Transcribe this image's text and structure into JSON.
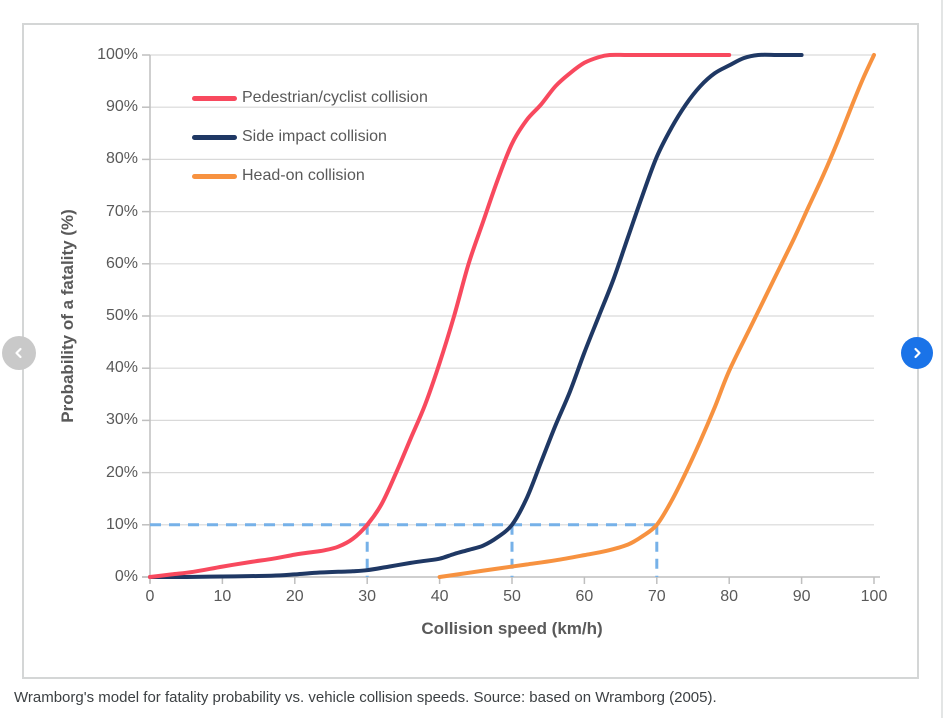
{
  "caption": "Wramborg's model for fatality probability vs. vehicle collision speeds. Source: based on Wramborg (2005).",
  "carousel": {
    "prev_icon": "chevron-left",
    "next_icon": "chevron-right",
    "prev_color": "#c9c9c9",
    "next_color": "#1a73e8"
  },
  "colors": {
    "grid": "#d9d9d9",
    "axis": "#bfbfbf",
    "tick_text": "#595959",
    "guide_blue": "#76b1e8",
    "card_border": "#d4d6d6"
  },
  "chart_data": {
    "type": "line",
    "title": "",
    "xlabel": "Collision speed (km/h)",
    "ylabel": "Probability of a fatality (%)",
    "xlim": [
      0,
      100
    ],
    "ylim": [
      0,
      100
    ],
    "x_ticks": [
      0,
      10,
      20,
      30,
      40,
      50,
      60,
      70,
      80,
      90,
      100
    ],
    "y_ticks": [
      0,
      10,
      20,
      30,
      40,
      50,
      60,
      70,
      80,
      90,
      100
    ],
    "y_tick_suffix": "%",
    "grid": true,
    "legend_position": "top-left",
    "series": [
      {
        "name": "Pedestrian/cyclist collision",
        "color": "#f8495e",
        "points": [
          [
            0,
            0
          ],
          [
            3,
            0.5
          ],
          [
            6,
            1
          ],
          [
            10,
            2
          ],
          [
            14,
            2.9
          ],
          [
            17,
            3.5
          ],
          [
            20,
            4.3
          ],
          [
            22,
            4.7
          ],
          [
            24,
            5.1
          ],
          [
            26,
            5.8
          ],
          [
            28,
            7.3
          ],
          [
            30,
            10
          ],
          [
            32,
            14
          ],
          [
            34,
            20
          ],
          [
            36,
            26.5
          ],
          [
            38,
            33
          ],
          [
            40,
            41
          ],
          [
            42,
            50
          ],
          [
            44,
            60
          ],
          [
            46,
            68
          ],
          [
            48,
            76
          ],
          [
            50,
            83
          ],
          [
            52,
            87.5
          ],
          [
            54,
            90.5
          ],
          [
            56,
            94
          ],
          [
            58,
            96.5
          ],
          [
            60,
            98.5
          ],
          [
            62,
            99.6
          ],
          [
            63.5,
            100
          ],
          [
            66,
            100
          ],
          [
            70,
            100
          ],
          [
            74,
            100
          ],
          [
            77,
            100
          ],
          [
            80,
            100
          ]
        ]
      },
      {
        "name": "Side impact collision",
        "color": "#1f3864",
        "points": [
          [
            0,
            0
          ],
          [
            5,
            0
          ],
          [
            10,
            0.1
          ],
          [
            15,
            0.2
          ],
          [
            18,
            0.3
          ],
          [
            20,
            0.5
          ],
          [
            23,
            0.8
          ],
          [
            26,
            1
          ],
          [
            28,
            1.1
          ],
          [
            30,
            1.3
          ],
          [
            33,
            2
          ],
          [
            36,
            2.7
          ],
          [
            38,
            3.1
          ],
          [
            40,
            3.5
          ],
          [
            42,
            4.4
          ],
          [
            44,
            5.2
          ],
          [
            46,
            6
          ],
          [
            48,
            7.6
          ],
          [
            50,
            10
          ],
          [
            52,
            15
          ],
          [
            54,
            22
          ],
          [
            56,
            29
          ],
          [
            58,
            35.5
          ],
          [
            60,
            43
          ],
          [
            62,
            50
          ],
          [
            64,
            57
          ],
          [
            66,
            65
          ],
          [
            68,
            73
          ],
          [
            70,
            80.5
          ],
          [
            72,
            86
          ],
          [
            74,
            90.5
          ],
          [
            76,
            94
          ],
          [
            78,
            96.5
          ],
          [
            80,
            98
          ],
          [
            82,
            99.4
          ],
          [
            84,
            100
          ],
          [
            86.5,
            100
          ],
          [
            88,
            100
          ],
          [
            90,
            100
          ]
        ]
      },
      {
        "name": "Head-on collision",
        "color": "#f79240",
        "points": [
          [
            40,
            0
          ],
          [
            44,
            0.8
          ],
          [
            48,
            1.6
          ],
          [
            52,
            2.4
          ],
          [
            56,
            3.2
          ],
          [
            60,
            4.2
          ],
          [
            63,
            5
          ],
          [
            66,
            6.2
          ],
          [
            68,
            7.8
          ],
          [
            70,
            10
          ],
          [
            72,
            14.5
          ],
          [
            74,
            20
          ],
          [
            76,
            26
          ],
          [
            78,
            32.5
          ],
          [
            80,
            39.5
          ],
          [
            83,
            48
          ],
          [
            86,
            56.5
          ],
          [
            89,
            65
          ],
          [
            91,
            71
          ],
          [
            93,
            77
          ],
          [
            95,
            83.5
          ],
          [
            97,
            90.5
          ],
          [
            98.5,
            95.5
          ],
          [
            100,
            100
          ]
        ]
      }
    ],
    "guides": {
      "description": "dashed reference lines at 10% fatality probability",
      "y": 10,
      "x_values": [
        30,
        50,
        70
      ],
      "color": "#76b1e8"
    }
  }
}
